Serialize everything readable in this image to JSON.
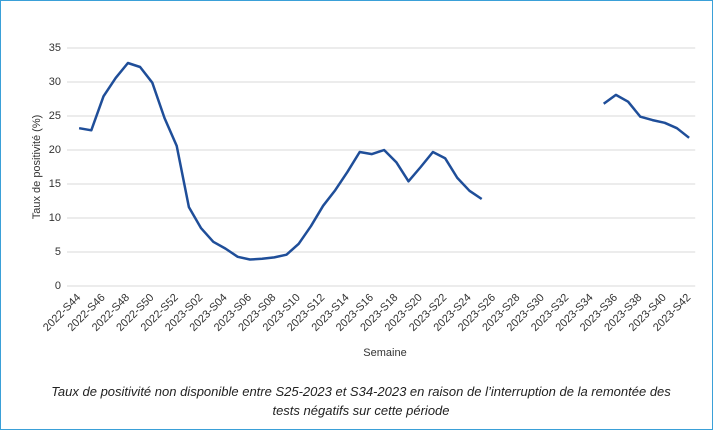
{
  "chart_data": {
    "type": "line",
    "categories": [
      "2022-S44",
      null,
      "2022-S46",
      null,
      "2022-S48",
      null,
      "2022-S50",
      null,
      "2022-S52",
      null,
      "2023-S02",
      null,
      "2023-S04",
      null,
      "2023-S06",
      null,
      "2023-S08",
      null,
      "2023-S10",
      null,
      "2023-S12",
      null,
      "2023-S14",
      null,
      "2023-S16",
      null,
      "2023-S18",
      null,
      "2023-S20",
      null,
      "2023-S22",
      null,
      "2023-S24",
      null,
      "2023-S26",
      null,
      "2023-S28",
      null,
      "2023-S30",
      null,
      "2023-S32",
      null,
      "2023-S34",
      null,
      "2023-S36",
      null,
      "2023-S38",
      null,
      "2023-S40",
      null,
      "2023-S42"
    ],
    "series": [
      {
        "name": "Taux de positivité",
        "color": "#1f4e99",
        "values": [
          23.2,
          22.9,
          27.9,
          30.6,
          32.8,
          32.2,
          29.9,
          24.7,
          20.6,
          11.6,
          8.5,
          6.5,
          5.5,
          4.3,
          3.9,
          4.0,
          4.2,
          4.6,
          6.2,
          8.8,
          11.8,
          14.1,
          16.8,
          19.7,
          19.4,
          20.0,
          18.2,
          15.4,
          17.5,
          19.7,
          18.8,
          15.9,
          14.0,
          12.8,
          null,
          null,
          null,
          null,
          null,
          null,
          null,
          null,
          null,
          26.8,
          28.1,
          27.1,
          24.9,
          24.4,
          24.0,
          23.2,
          21.8
        ]
      }
    ],
    "ylim": [
      0,
      35
    ],
    "yticks": [
      0,
      5,
      10,
      15,
      20,
      25,
      30,
      35
    ],
    "grid": true,
    "y_label": "Taux de positivité (%)",
    "x_label": "Semaine",
    "note": "Taux de positivité non disponible entre S25-2023 et S34-2023 en raison de l’interruption de la remontée des tests négatifs sur cette période"
  }
}
